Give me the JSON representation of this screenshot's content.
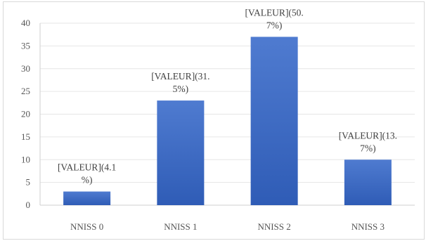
{
  "chart_data": {
    "type": "bar",
    "title": "",
    "xlabel": "",
    "ylabel": "",
    "categories": [
      "NNISS 0",
      "NNISS 1",
      "NNISS 2",
      "NNISS 3"
    ],
    "values": [
      3,
      23,
      37,
      10
    ],
    "data_labels": [
      [
        "[VALEUR](4.1",
        "%)"
      ],
      [
        "[VALEUR](31.",
        "5%)"
      ],
      [
        "[VALEUR](50.",
        "7%)"
      ],
      [
        "[VALEUR](13.",
        "7%)"
      ]
    ],
    "ylim": [
      0,
      40
    ],
    "yticks": [
      "0",
      "5",
      "10",
      "15",
      "20",
      "25",
      "30",
      "35",
      "40"
    ],
    "grid": true,
    "legend": "none",
    "bar_color_top": "#4f7bd0",
    "bar_color_bottom": "#2f5cb6"
  }
}
